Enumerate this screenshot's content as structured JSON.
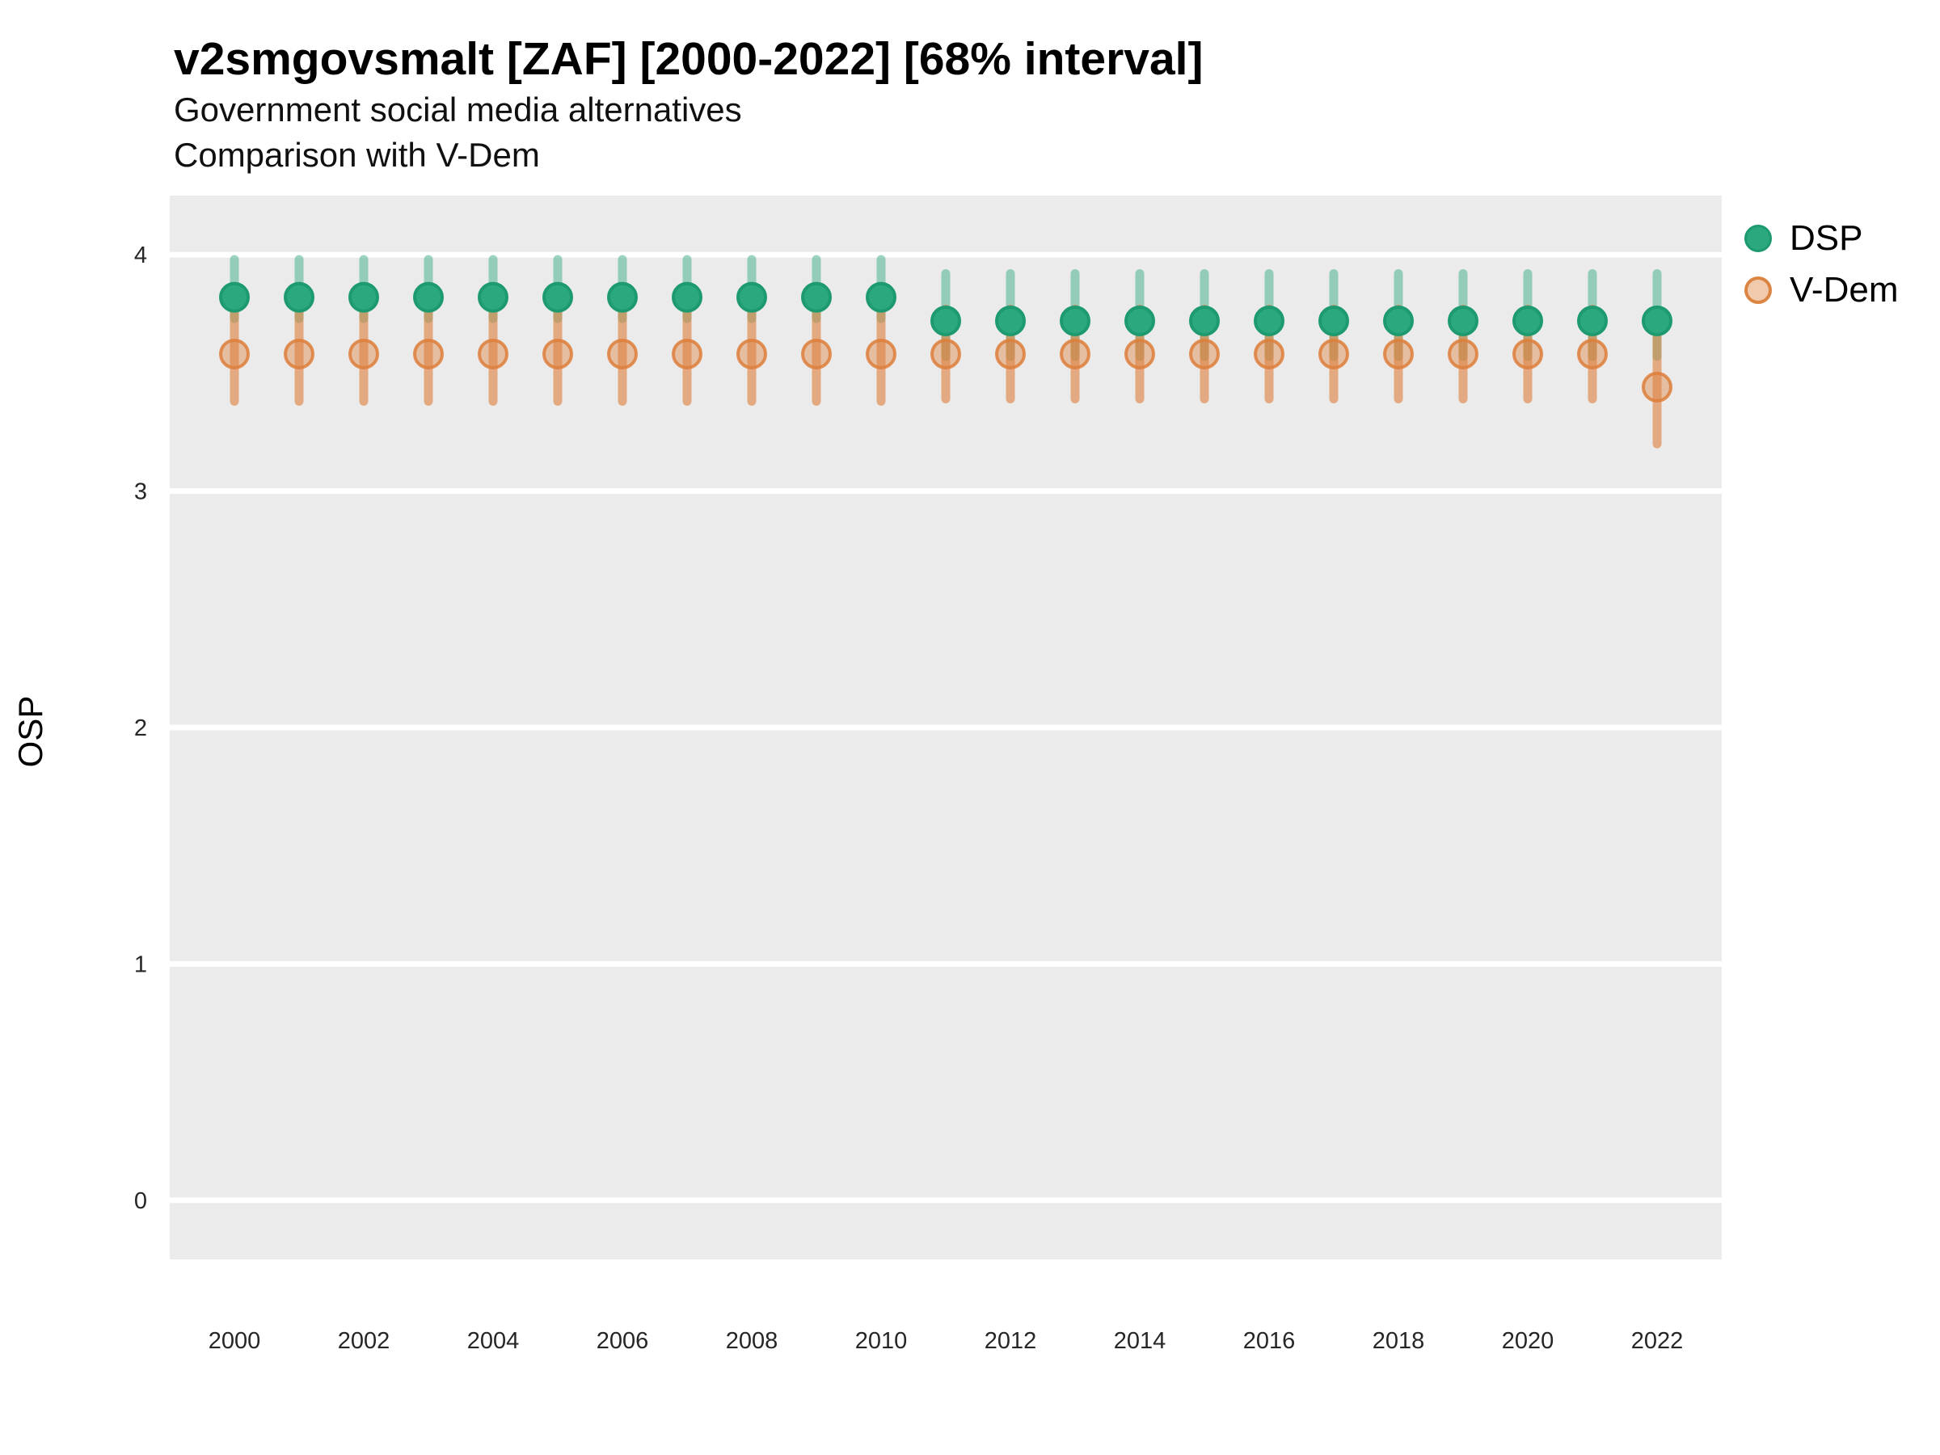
{
  "header": {
    "title": "v2smgovsmalt [ZAF] [2000-2022] [68% interval]",
    "subtitle_line1": "Government social media alternatives",
    "subtitle_line2": "Comparison with V-Dem"
  },
  "chart_data": {
    "type": "scatter",
    "title": "v2smgovsmalt [ZAF] [2000-2022] [68% interval]",
    "subtitle": "Government social media alternatives / Comparison with V-Dem",
    "xlabel": "",
    "ylabel": "OSP",
    "interval": "68%",
    "x": [
      2000,
      2001,
      2002,
      2003,
      2004,
      2005,
      2006,
      2007,
      2008,
      2009,
      2010,
      2011,
      2012,
      2013,
      2014,
      2015,
      2016,
      2017,
      2018,
      2019,
      2020,
      2021,
      2022
    ],
    "series": [
      {
        "name": "DSP",
        "color": "#2BA87E",
        "values": [
          3.82,
          3.82,
          3.82,
          3.82,
          3.82,
          3.82,
          3.82,
          3.82,
          3.82,
          3.82,
          3.82,
          3.72,
          3.72,
          3.72,
          3.72,
          3.72,
          3.72,
          3.72,
          3.72,
          3.72,
          3.72,
          3.72,
          3.72
        ],
        "lower": [
          3.73,
          3.73,
          3.73,
          3.73,
          3.73,
          3.73,
          3.73,
          3.73,
          3.73,
          3.73,
          3.73,
          3.57,
          3.57,
          3.57,
          3.57,
          3.57,
          3.57,
          3.57,
          3.57,
          3.57,
          3.57,
          3.57,
          3.57
        ],
        "upper": [
          3.98,
          3.98,
          3.98,
          3.98,
          3.98,
          3.98,
          3.98,
          3.98,
          3.98,
          3.98,
          3.98,
          3.92,
          3.92,
          3.92,
          3.92,
          3.92,
          3.92,
          3.92,
          3.92,
          3.92,
          3.92,
          3.92,
          3.92
        ]
      },
      {
        "name": "V-Dem",
        "color": "#DD7E3A",
        "values": [
          3.58,
          3.58,
          3.58,
          3.58,
          3.58,
          3.58,
          3.58,
          3.58,
          3.58,
          3.58,
          3.58,
          3.58,
          3.58,
          3.58,
          3.58,
          3.58,
          3.58,
          3.58,
          3.58,
          3.58,
          3.58,
          3.58,
          3.44
        ],
        "lower": [
          3.38,
          3.38,
          3.38,
          3.38,
          3.38,
          3.38,
          3.38,
          3.38,
          3.38,
          3.38,
          3.38,
          3.39,
          3.39,
          3.39,
          3.39,
          3.39,
          3.39,
          3.39,
          3.39,
          3.39,
          3.39,
          3.39,
          3.2
        ],
        "upper": [
          3.78,
          3.78,
          3.78,
          3.78,
          3.78,
          3.78,
          3.78,
          3.78,
          3.78,
          3.78,
          3.78,
          3.77,
          3.77,
          3.77,
          3.77,
          3.77,
          3.77,
          3.77,
          3.77,
          3.77,
          3.77,
          3.77,
          3.67
        ]
      }
    ],
    "xticks": [
      2000,
      2002,
      2004,
      2006,
      2008,
      2010,
      2012,
      2014,
      2016,
      2018,
      2020,
      2022
    ],
    "yticks": [
      0,
      1,
      2,
      3,
      4
    ],
    "xlim": [
      1999,
      23
    ],
    "xlim_full": [
      1999,
      2023
    ],
    "ylim": [
      -0.25,
      4.25
    ],
    "legend_position": "right",
    "grid": "major-horizontal",
    "panel_color": "#EBEBEB",
    "gridline_color": "#FFFFFF"
  }
}
